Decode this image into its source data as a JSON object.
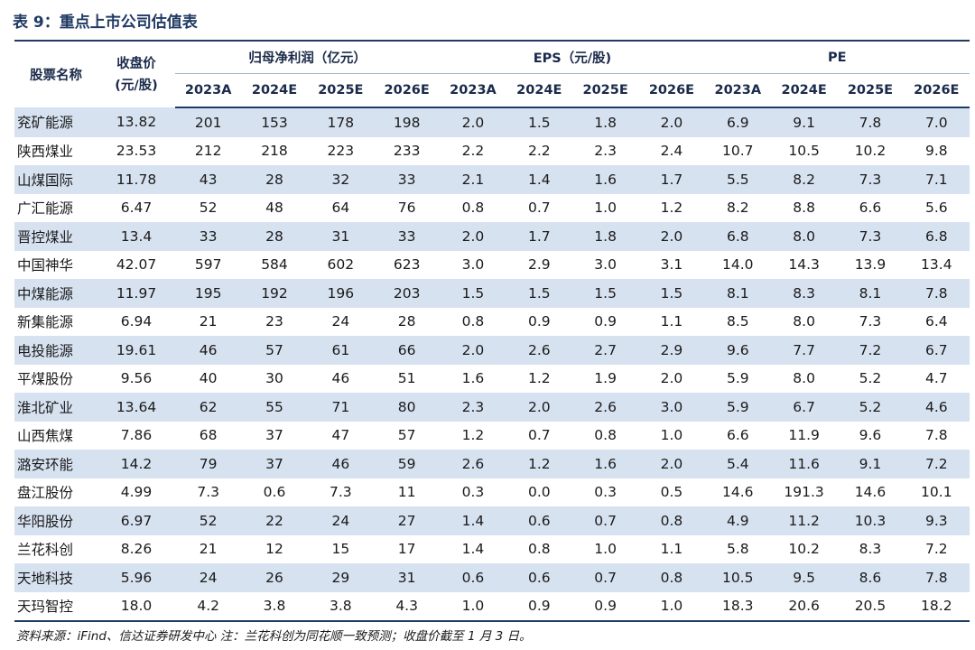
{
  "title": "表 9：重点上市公司估值表",
  "header": {
    "company": "股票名称",
    "close_line1": "收盘价",
    "close_line2": "(元/股)",
    "group_profit": "归母净利润（亿元）",
    "group_eps": "EPS（元/股)",
    "group_pe": "PE",
    "years": [
      "2023A",
      "2024E",
      "2025E",
      "2026E"
    ]
  },
  "rows": [
    {
      "name": "兖矿能源",
      "close": "13.82",
      "profit": [
        "201",
        "153",
        "178",
        "198"
      ],
      "eps": [
        "2.0",
        "1.5",
        "1.8",
        "2.0"
      ],
      "pe": [
        "6.9",
        "9.1",
        "7.8",
        "7.0"
      ]
    },
    {
      "name": "陕西煤业",
      "close": "23.53",
      "profit": [
        "212",
        "218",
        "223",
        "233"
      ],
      "eps": [
        "2.2",
        "2.2",
        "2.3",
        "2.4"
      ],
      "pe": [
        "10.7",
        "10.5",
        "10.2",
        "9.8"
      ]
    },
    {
      "name": "山煤国际",
      "close": "11.78",
      "profit": [
        "43",
        "28",
        "32",
        "33"
      ],
      "eps": [
        "2.1",
        "1.4",
        "1.6",
        "1.7"
      ],
      "pe": [
        "5.5",
        "8.2",
        "7.3",
        "7.1"
      ]
    },
    {
      "name": "广汇能源",
      "close": "6.47",
      "profit": [
        "52",
        "48",
        "64",
        "76"
      ],
      "eps": [
        "0.8",
        "0.7",
        "1.0",
        "1.2"
      ],
      "pe": [
        "8.2",
        "8.8",
        "6.6",
        "5.6"
      ]
    },
    {
      "name": "晋控煤业",
      "close": "13.4",
      "profit": [
        "33",
        "28",
        "31",
        "33"
      ],
      "eps": [
        "2.0",
        "1.7",
        "1.8",
        "2.0"
      ],
      "pe": [
        "6.8",
        "8.0",
        "7.3",
        "6.8"
      ]
    },
    {
      "name": "中国神华",
      "close": "42.07",
      "profit": [
        "597",
        "584",
        "602",
        "623"
      ],
      "eps": [
        "3.0",
        "2.9",
        "3.0",
        "3.1"
      ],
      "pe": [
        "14.0",
        "14.3",
        "13.9",
        "13.4"
      ]
    },
    {
      "name": "中煤能源",
      "close": "11.97",
      "profit": [
        "195",
        "192",
        "196",
        "203"
      ],
      "eps": [
        "1.5",
        "1.5",
        "1.5",
        "1.5"
      ],
      "pe": [
        "8.1",
        "8.3",
        "8.1",
        "7.8"
      ]
    },
    {
      "name": "新集能源",
      "close": "6.94",
      "profit": [
        "21",
        "23",
        "24",
        "28"
      ],
      "eps": [
        "0.8",
        "0.9",
        "0.9",
        "1.1"
      ],
      "pe": [
        "8.5",
        "8.0",
        "7.3",
        "6.4"
      ]
    },
    {
      "name": "电投能源",
      "close": "19.61",
      "profit": [
        "46",
        "57",
        "61",
        "66"
      ],
      "eps": [
        "2.0",
        "2.6",
        "2.7",
        "2.9"
      ],
      "pe": [
        "9.6",
        "7.7",
        "7.2",
        "6.7"
      ]
    },
    {
      "name": "平煤股份",
      "close": "9.56",
      "profit": [
        "40",
        "30",
        "46",
        "51"
      ],
      "eps": [
        "1.6",
        "1.2",
        "1.9",
        "2.0"
      ],
      "pe": [
        "5.9",
        "8.0",
        "5.2",
        "4.7"
      ]
    },
    {
      "name": "淮北矿业",
      "close": "13.64",
      "profit": [
        "62",
        "55",
        "71",
        "80"
      ],
      "eps": [
        "2.3",
        "2.0",
        "2.6",
        "3.0"
      ],
      "pe": [
        "5.9",
        "6.7",
        "5.2",
        "4.6"
      ]
    },
    {
      "name": "山西焦煤",
      "close": "7.86",
      "profit": [
        "68",
        "37",
        "47",
        "57"
      ],
      "eps": [
        "1.2",
        "0.7",
        "0.8",
        "1.0"
      ],
      "pe": [
        "6.6",
        "11.9",
        "9.6",
        "7.8"
      ]
    },
    {
      "name": "潞安环能",
      "close": "14.2",
      "profit": [
        "79",
        "37",
        "46",
        "59"
      ],
      "eps": [
        "2.6",
        "1.2",
        "1.6",
        "2.0"
      ],
      "pe": [
        "5.4",
        "11.6",
        "9.1",
        "7.2"
      ]
    },
    {
      "name": "盘江股份",
      "close": "4.99",
      "profit": [
        "7.3",
        "0.6",
        "7.3",
        "11"
      ],
      "eps": [
        "0.3",
        "0.0",
        "0.3",
        "0.5"
      ],
      "pe": [
        "14.6",
        "191.3",
        "14.6",
        "10.1"
      ]
    },
    {
      "name": "华阳股份",
      "close": "6.97",
      "profit": [
        "52",
        "22",
        "24",
        "27"
      ],
      "eps": [
        "1.4",
        "0.6",
        "0.7",
        "0.8"
      ],
      "pe": [
        "4.9",
        "11.2",
        "10.3",
        "9.3"
      ]
    },
    {
      "name": "兰花科创",
      "close": "8.26",
      "profit": [
        "21",
        "12",
        "15",
        "17"
      ],
      "eps": [
        "1.4",
        "0.8",
        "1.0",
        "1.1"
      ],
      "pe": [
        "5.8",
        "10.2",
        "8.3",
        "7.2"
      ]
    },
    {
      "name": "天地科技",
      "close": "5.96",
      "profit": [
        "24",
        "26",
        "29",
        "31"
      ],
      "eps": [
        "0.6",
        "0.6",
        "0.7",
        "0.8"
      ],
      "pe": [
        "10.5",
        "9.5",
        "8.6",
        "7.8"
      ]
    },
    {
      "name": "天玛智控",
      "close": "18.0",
      "profit": [
        "4.2",
        "3.8",
        "3.8",
        "4.3"
      ],
      "eps": [
        "1.0",
        "0.9",
        "0.9",
        "1.0"
      ],
      "pe": [
        "18.3",
        "20.6",
        "20.5",
        "18.2"
      ]
    }
  ],
  "source_note": "资料来源：iFind、信达证券研发中心  注：兰花科创为同花顺一致预测；收盘价截至 1 月 3 日。"
}
